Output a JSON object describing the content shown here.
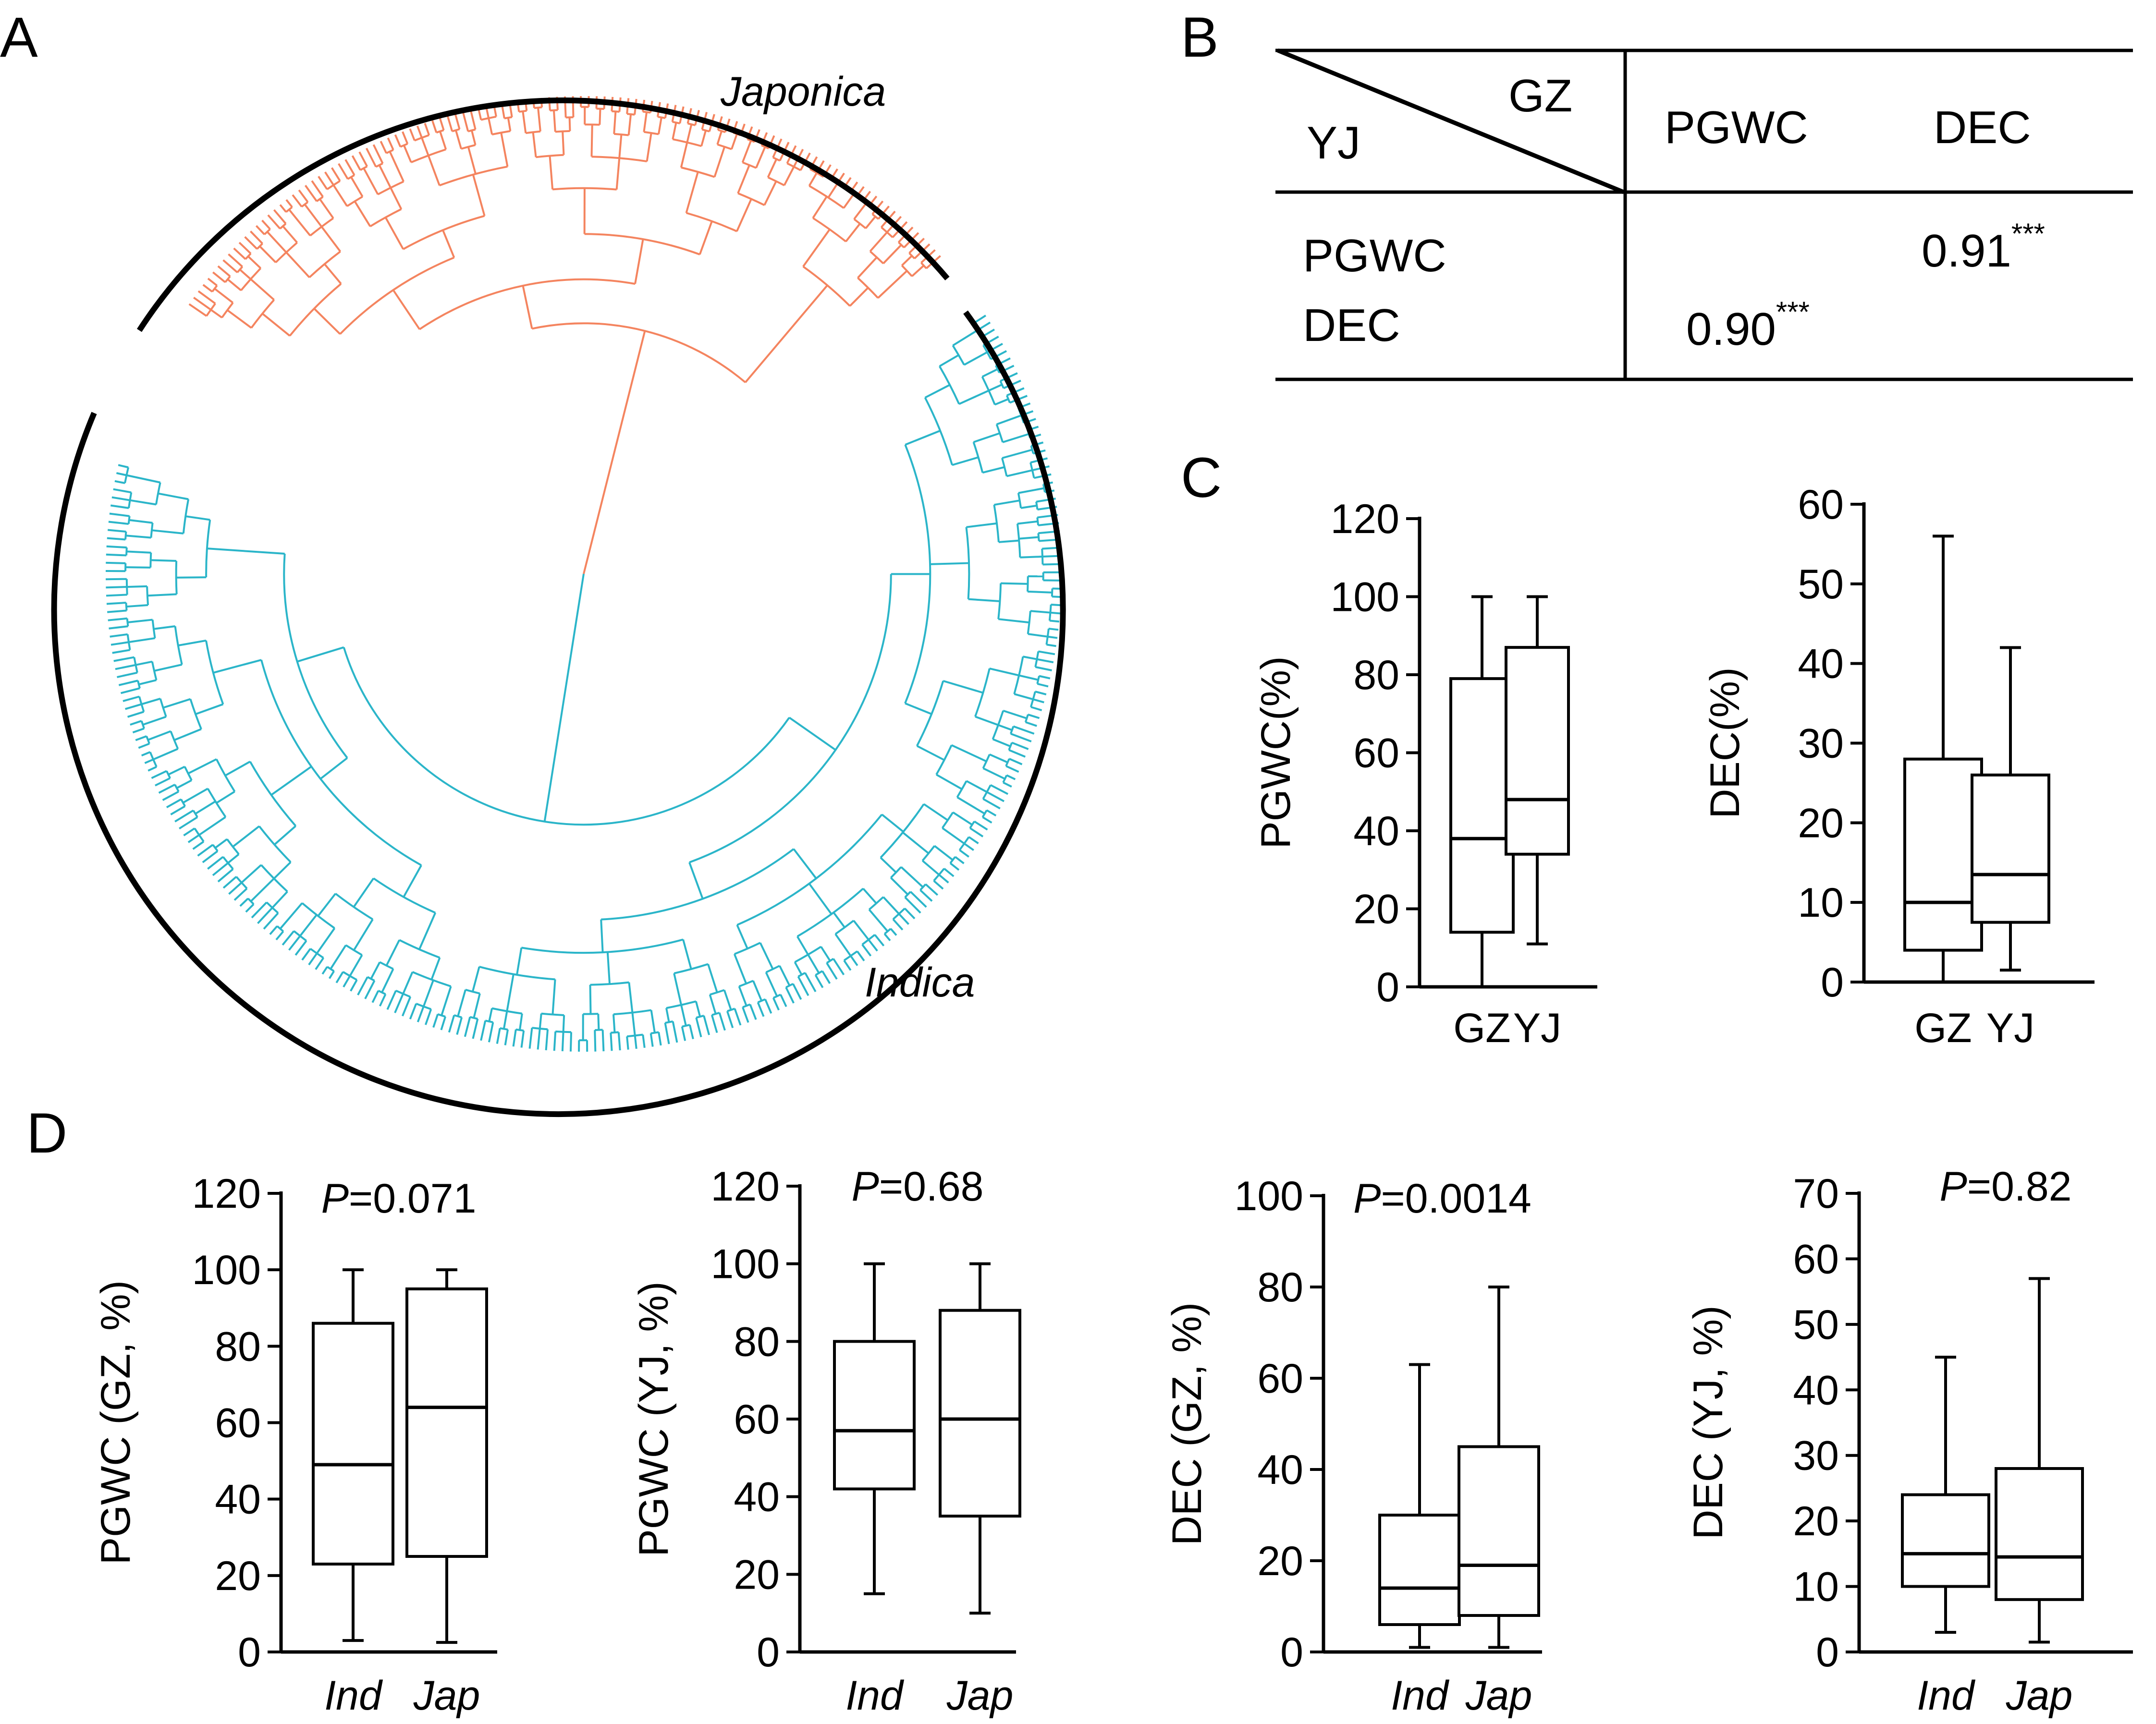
{
  "colors": {
    "japonica": "#f4845f",
    "indica": "#2bb5c9",
    "ink": "#000000"
  },
  "panel_labels": {
    "a": "A",
    "b": "B",
    "c": "C",
    "d": "D"
  },
  "panel_a": {
    "type": "phylogenetic-tree",
    "clade_labels": {
      "japonica": "Japonica",
      "indica": "Indica"
    }
  },
  "panel_b": {
    "corner_top": "GZ",
    "corner_bottom": "YJ",
    "col_headers": [
      "PGWC",
      "DEC"
    ],
    "row_headers": [
      "PGWC",
      "DEC"
    ],
    "val_pgwc_dec": "0.91",
    "val_dec_pgwc": "0.90",
    "sig": "***"
  },
  "chart_data": [
    {
      "type": "boxplot",
      "panel": "C-left",
      "ylabel": "PGWC(%)",
      "ylim": [
        0,
        120
      ],
      "yticks": [
        "0",
        "20",
        "40",
        "60",
        "80",
        "100",
        "120"
      ],
      "categories": [
        "GZ",
        "YJ"
      ],
      "italic_categories": false,
      "annotation_prefix": "",
      "annotation_value": "",
      "boxes": [
        {
          "min": 0,
          "q1": 14,
          "median": 38,
          "q3": 79,
          "max": 100
        },
        {
          "min": 11,
          "q1": 34,
          "median": 48,
          "q3": 87,
          "max": 100
        }
      ]
    },
    {
      "type": "boxplot",
      "panel": "C-right",
      "ylabel": "DEC(%)",
      "ylim": [
        0,
        60
      ],
      "yticks": [
        "0",
        "10",
        "20",
        "30",
        "40",
        "50",
        "60"
      ],
      "categories": [
        "GZ",
        "YJ"
      ],
      "italic_categories": false,
      "annotation_prefix": "",
      "annotation_value": "",
      "boxes": [
        {
          "min": 0,
          "q1": 4,
          "median": 10,
          "q3": 28,
          "max": 56
        },
        {
          "min": 1.5,
          "q1": 7.5,
          "median": 13.5,
          "q3": 26,
          "max": 42
        }
      ]
    },
    {
      "type": "boxplot",
      "panel": "D-1",
      "ylabel": "PGWC (GZ, %)",
      "ylim": [
        0,
        120
      ],
      "yticks": [
        "0",
        "20",
        "40",
        "60",
        "80",
        "100",
        "120"
      ],
      "categories": [
        "Ind",
        "Jap"
      ],
      "italic_categories": true,
      "annotation_prefix": "P",
      "annotation_value": "=0.071",
      "boxes": [
        {
          "min": 3,
          "q1": 23,
          "median": 49,
          "q3": 86,
          "max": 100
        },
        {
          "min": 2.5,
          "q1": 25,
          "median": 64,
          "q3": 95,
          "max": 100
        }
      ]
    },
    {
      "type": "boxplot",
      "panel": "D-2",
      "ylabel": "PGWC (YJ, %)",
      "ylim": [
        0,
        120
      ],
      "yticks": [
        "0",
        "20",
        "40",
        "60",
        "80",
        "100",
        "120"
      ],
      "categories": [
        "Ind",
        "Jap"
      ],
      "italic_categories": true,
      "annotation_prefix": "P",
      "annotation_value": "=0.68",
      "boxes": [
        {
          "min": 15,
          "q1": 42,
          "median": 57,
          "q3": 80,
          "max": 100
        },
        {
          "min": 10,
          "q1": 35,
          "median": 60,
          "q3": 88,
          "max": 100
        }
      ]
    },
    {
      "type": "boxplot",
      "panel": "D-3",
      "ylabel": "DEC (GZ, %)",
      "ylim": [
        0,
        100
      ],
      "yticks": [
        "0",
        "20",
        "40",
        "60",
        "80",
        "100"
      ],
      "categories": [
        "Ind",
        "Jap"
      ],
      "italic_categories": true,
      "annotation_prefix": "P",
      "annotation_value": "=0.0014",
      "boxes": [
        {
          "min": 1,
          "q1": 6,
          "median": 14,
          "q3": 30,
          "max": 63
        },
        {
          "min": 1,
          "q1": 8,
          "median": 19,
          "q3": 45,
          "max": 80
        }
      ]
    },
    {
      "type": "boxplot",
      "panel": "D-4",
      "ylabel": "DEC (YJ, %)",
      "ylim": [
        0,
        70
      ],
      "yticks": [
        "0",
        "10",
        "20",
        "30",
        "40",
        "50",
        "60",
        "70"
      ],
      "categories": [
        "Ind",
        "Jap"
      ],
      "italic_categories": true,
      "annotation_prefix": "P",
      "annotation_value": "=0.82",
      "boxes": [
        {
          "min": 3,
          "q1": 10,
          "median": 15,
          "q3": 24,
          "max": 45
        },
        {
          "min": 1.5,
          "q1": 8,
          "median": 14.5,
          "q3": 28,
          "max": 57
        }
      ]
    }
  ]
}
